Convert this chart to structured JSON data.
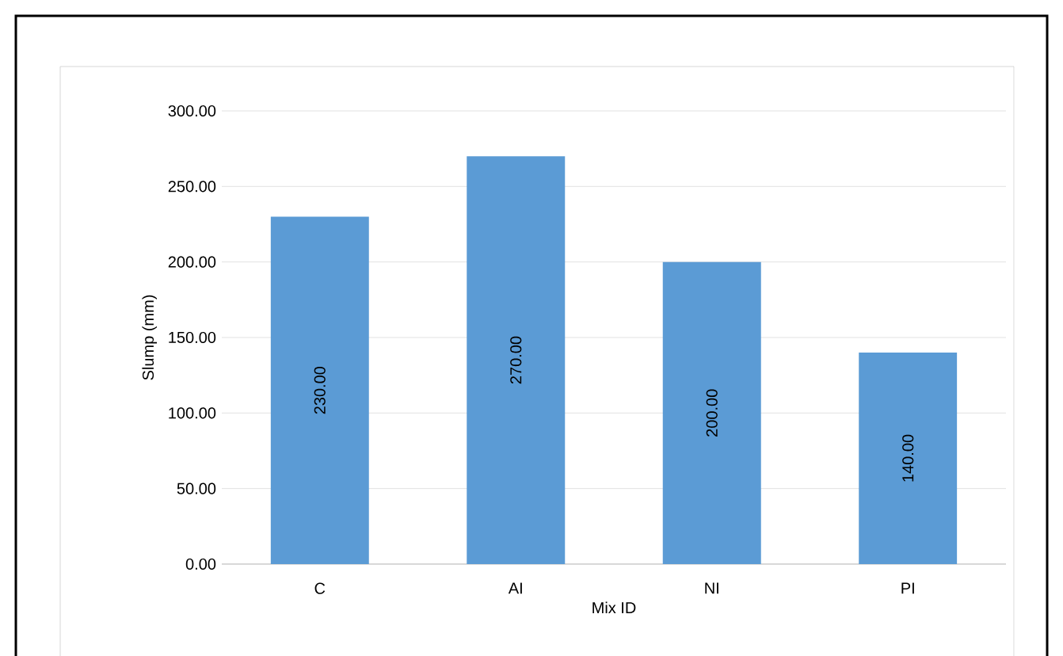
{
  "chart_data": {
    "type": "bar",
    "xlabel": "Mix ID",
    "ylabel": "Slump (mm)",
    "categories": [
      "C",
      "AI",
      "NI",
      "PI"
    ],
    "values": [
      230,
      270,
      200,
      140
    ],
    "value_labels": [
      "230.00",
      "270.00",
      "200.00",
      "140.00"
    ],
    "color": "#5b9bd5",
    "ylim": [
      0,
      300
    ],
    "yticks": [
      {
        "value": 0,
        "label": "0.00"
      },
      {
        "value": 50,
        "label": "50.00"
      },
      {
        "value": 100,
        "label": "100.00"
      },
      {
        "value": 150,
        "label": "150.00"
      },
      {
        "value": 200,
        "label": "200.00"
      },
      {
        "value": 250,
        "label": "250.00"
      },
      {
        "value": 300,
        "label": "300.00"
      }
    ],
    "grid": "y"
  }
}
